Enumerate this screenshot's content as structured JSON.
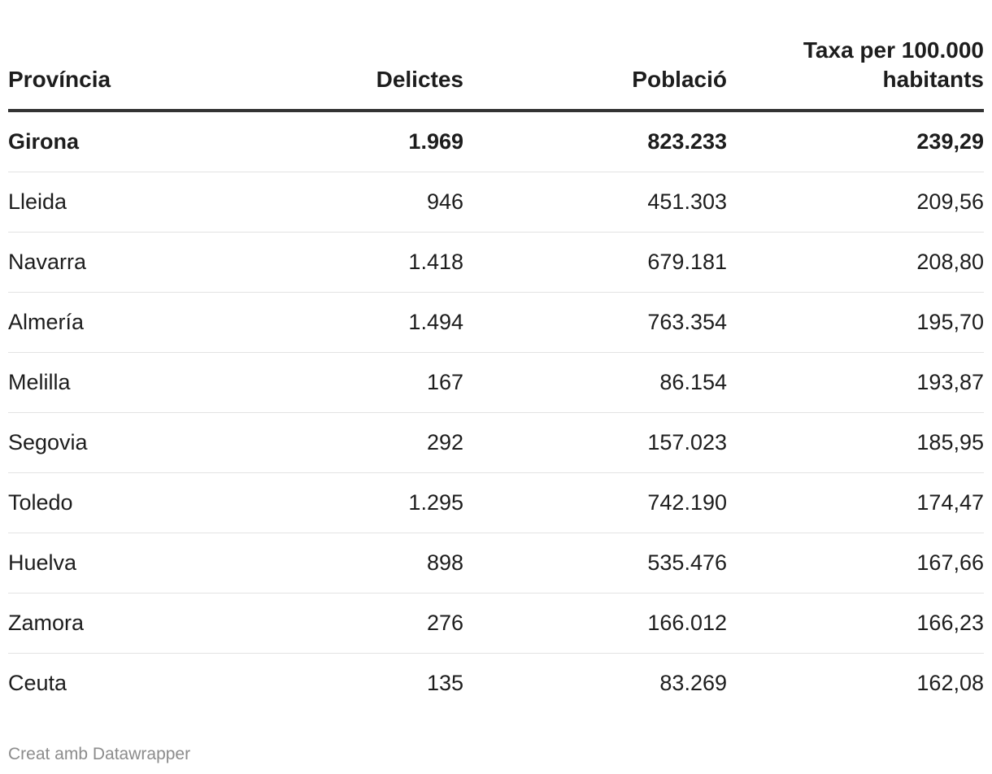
{
  "chart_data": {
    "type": "table",
    "columns": [
      "Província",
      "Delictes",
      "Població",
      "Taxa per 100.000 habitants"
    ],
    "rows": [
      {
        "provincia": "Girona",
        "delictes": "1.969",
        "poblacio": "823.233",
        "taxa": "239,29",
        "highlight": true
      },
      {
        "provincia": "Lleida",
        "delictes": "946",
        "poblacio": "451.303",
        "taxa": "209,56",
        "highlight": false
      },
      {
        "provincia": "Navarra",
        "delictes": "1.418",
        "poblacio": "679.181",
        "taxa": "208,80",
        "highlight": false
      },
      {
        "provincia": "Almería",
        "delictes": "1.494",
        "poblacio": "763.354",
        "taxa": "195,70",
        "highlight": false
      },
      {
        "provincia": "Melilla",
        "delictes": "167",
        "poblacio": "86.154",
        "taxa": "193,87",
        "highlight": false
      },
      {
        "provincia": "Segovia",
        "delictes": "292",
        "poblacio": "157.023",
        "taxa": "185,95",
        "highlight": false
      },
      {
        "provincia": "Toledo",
        "delictes": "1.295",
        "poblacio": "742.190",
        "taxa": "174,47",
        "highlight": false
      },
      {
        "provincia": "Huelva",
        "delictes": "898",
        "poblacio": "535.476",
        "taxa": "167,66",
        "highlight": false
      },
      {
        "provincia": "Zamora",
        "delictes": "276",
        "poblacio": "166.012",
        "taxa": "166,23",
        "highlight": false
      },
      {
        "provincia": "Ceuta",
        "delictes": "135",
        "poblacio": "83.269",
        "taxa": "162,08",
        "highlight": false
      }
    ]
  },
  "header": {
    "col_provincia": "Província",
    "col_delictes": "Delictes",
    "col_poblacio": "Població",
    "col_taxa_line1": "Taxa per 100.000",
    "col_taxa_line2": "habitants"
  },
  "footer": {
    "credit": "Creat amb Datawrapper"
  },
  "colors": {
    "text": "#1d1d1d",
    "header_rule": "#333333",
    "row_rule": "#e3e3e3",
    "footer_text": "#8c8c8c"
  }
}
